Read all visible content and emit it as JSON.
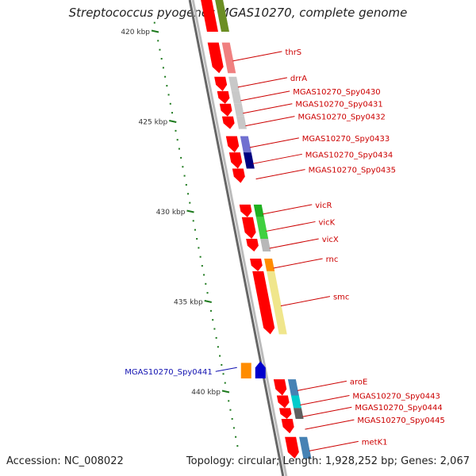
{
  "title": "Streptococcus pyogenes MGAS10270, complete genome",
  "footer": {
    "accession": "Accession: NC_008022",
    "topology": "Topology: circular; Length: 1,928,252 bp; Genes: 2,067"
  },
  "colors": {
    "backbone": "#888888",
    "forward_gene": "#ff0000",
    "reverse_gene": "#0000cc",
    "forward_label": "#cc0000",
    "reverse_label": "#1010b0",
    "tick": "#1e7a1e"
  },
  "ticks": [
    {
      "label": "420 kbp",
      "kbp": 420
    },
    {
      "label": "425 kbp",
      "kbp": 425
    },
    {
      "label": "430 kbp",
      "kbp": 430
    },
    {
      "label": "435 kbp",
      "kbp": 435
    },
    {
      "label": "440 kbp",
      "kbp": 440
    }
  ],
  "genes_forward": [
    {
      "name": "thrS",
      "start": 420.6,
      "end": 422.3,
      "cog": "#f08080"
    },
    {
      "name": "drrA",
      "start": 422.5,
      "end": 423.3,
      "cog": "#c8c8c8"
    },
    {
      "name": "MGAS10270_Spy0430",
      "start": 423.3,
      "end": 424.0,
      "cog": "#c8c8c8"
    },
    {
      "name": "MGAS10270_Spy0431",
      "start": 424.0,
      "end": 424.7,
      "cog": "#c8c8c8"
    },
    {
      "name": "MGAS10270_Spy0432",
      "start": 424.7,
      "end": 425.4,
      "cog": "#c8c8c8"
    },
    {
      "name": "MGAS10270_Spy0433",
      "start": 425.8,
      "end": 426.7,
      "cog": "#7070d0"
    },
    {
      "name": "MGAS10270_Spy0434",
      "start": 426.7,
      "end": 427.6,
      "cog": "#000080"
    },
    {
      "name": "MGAS10270_Spy0435",
      "start": 427.6,
      "end": 428.4,
      "cog": ""
    },
    {
      "name": "vicR",
      "start": 429.6,
      "end": 430.3,
      "cog": "#20b020"
    },
    {
      "name": "vicK",
      "start": 430.3,
      "end": 431.5,
      "cog": "#40d040"
    },
    {
      "name": "vicX",
      "start": 431.5,
      "end": 432.2,
      "cog": "#b8b8b8"
    },
    {
      "name": "rnc",
      "start": 432.6,
      "end": 433.3,
      "cog": "#ff8c00"
    },
    {
      "name": "smc",
      "start": 433.3,
      "end": 436.8,
      "cog": "#f0e68c"
    },
    {
      "name": "aroE",
      "start": 439.3,
      "end": 440.2,
      "cog": "#4682b4"
    },
    {
      "name": "MGAS10270_Spy0443",
      "start": 440.2,
      "end": 440.9,
      "cog": "#00cccc"
    },
    {
      "name": "MGAS10270_Spy0444",
      "start": 440.9,
      "end": 441.5,
      "cog": "#606060"
    },
    {
      "name": "MGAS10270_Spy0445",
      "start": 441.5,
      "end": 442.3,
      "cog": ""
    },
    {
      "name": "metK1",
      "start": 442.5,
      "end": 443.7,
      "cog": "#4682b4"
    }
  ],
  "genes_reverse": [
    {
      "name": "MGAS10270_Spy0441",
      "start": 438.3,
      "end": 438.9,
      "cog": "#ff8c00"
    }
  ]
}
